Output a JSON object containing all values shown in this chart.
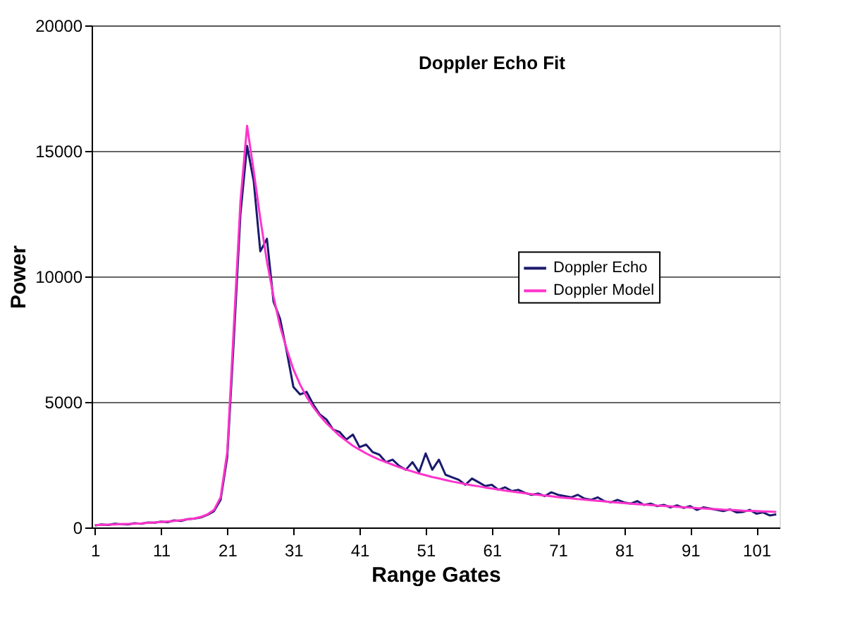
{
  "chart_data": {
    "type": "line",
    "title": "Doppler Echo Fit",
    "xlabel": "Range Gates",
    "ylabel": "Power",
    "x": [
      1,
      2,
      3,
      4,
      5,
      6,
      7,
      8,
      9,
      10,
      11,
      12,
      13,
      14,
      15,
      16,
      17,
      18,
      19,
      20,
      21,
      22,
      23,
      24,
      25,
      26,
      27,
      28,
      29,
      30,
      31,
      32,
      33,
      34,
      35,
      36,
      37,
      38,
      39,
      40,
      41,
      42,
      43,
      44,
      45,
      46,
      47,
      48,
      49,
      50,
      51,
      52,
      53,
      54,
      55,
      56,
      57,
      58,
      59,
      60,
      61,
      62,
      63,
      64,
      65,
      66,
      67,
      68,
      69,
      70,
      71,
      72,
      73,
      74,
      75,
      76,
      77,
      78,
      79,
      80,
      81,
      82,
      83,
      84,
      85,
      86,
      87,
      88,
      89,
      90,
      91,
      92,
      93,
      94,
      95,
      96,
      97,
      98,
      99,
      100,
      101,
      102,
      103,
      104
    ],
    "series": [
      {
        "name": "Doppler Echo",
        "color": "#1a1a6e",
        "values": [
          80,
          120,
          100,
          150,
          130,
          120,
          170,
          150,
          200,
          190,
          230,
          210,
          280,
          260,
          330,
          350,
          400,
          500,
          650,
          1100,
          2800,
          7500,
          12500,
          15200,
          13800,
          11000,
          11500,
          9000,
          8300,
          7000,
          5600,
          5300,
          5400,
          4900,
          4500,
          4300,
          3900,
          3800,
          3500,
          3700,
          3200,
          3300,
          3000,
          2900,
          2600,
          2700,
          2450,
          2300,
          2600,
          2200,
          2950,
          2300,
          2700,
          2100,
          2000,
          1900,
          1700,
          1950,
          1800,
          1650,
          1700,
          1500,
          1600,
          1450,
          1500,
          1380,
          1300,
          1350,
          1250,
          1400,
          1300,
          1250,
          1200,
          1300,
          1150,
          1100,
          1200,
          1050,
          1000,
          1100,
          1000,
          950,
          1050,
          900,
          950,
          850,
          900,
          800,
          880,
          780,
          850,
          700,
          800,
          750,
          700,
          650,
          720,
          600,
          620,
          700,
          550,
          600,
          480,
          520
        ]
      },
      {
        "name": "Doppler Model",
        "color": "#ff33cc",
        "values": [
          100,
          100,
          110,
          120,
          130,
          140,
          150,
          160,
          180,
          200,
          220,
          240,
          260,
          290,
          320,
          360,
          420,
          520,
          700,
          1200,
          3000,
          8000,
          13000,
          16000,
          14200,
          12300,
          10600,
          9200,
          8000,
          7100,
          6300,
          5700,
          5200,
          4800,
          4450,
          4150,
          3900,
          3650,
          3450,
          3250,
          3100,
          2950,
          2820,
          2700,
          2600,
          2500,
          2400,
          2310,
          2230,
          2150,
          2080,
          2010,
          1950,
          1890,
          1830,
          1780,
          1730,
          1680,
          1640,
          1590,
          1550,
          1510,
          1470,
          1430,
          1400,
          1360,
          1330,
          1300,
          1270,
          1240,
          1210,
          1180,
          1160,
          1130,
          1110,
          1080,
          1060,
          1040,
          1010,
          990,
          970,
          950,
          930,
          910,
          890,
          870,
          860,
          840,
          820,
          810,
          790,
          770,
          760,
          740,
          730,
          710,
          700,
          690,
          670,
          660,
          650,
          640,
          630,
          620
        ]
      }
    ],
    "xlim": [
      0.5,
      104.5
    ],
    "xticks": [
      1,
      11,
      21,
      31,
      41,
      51,
      61,
      71,
      81,
      91,
      101
    ],
    "ylim": [
      0,
      20000
    ],
    "yticks": [
      0,
      5000,
      10000,
      15000,
      20000
    ],
    "grid": "y",
    "legend": "right",
    "marker": "none",
    "line_style": "solid"
  }
}
